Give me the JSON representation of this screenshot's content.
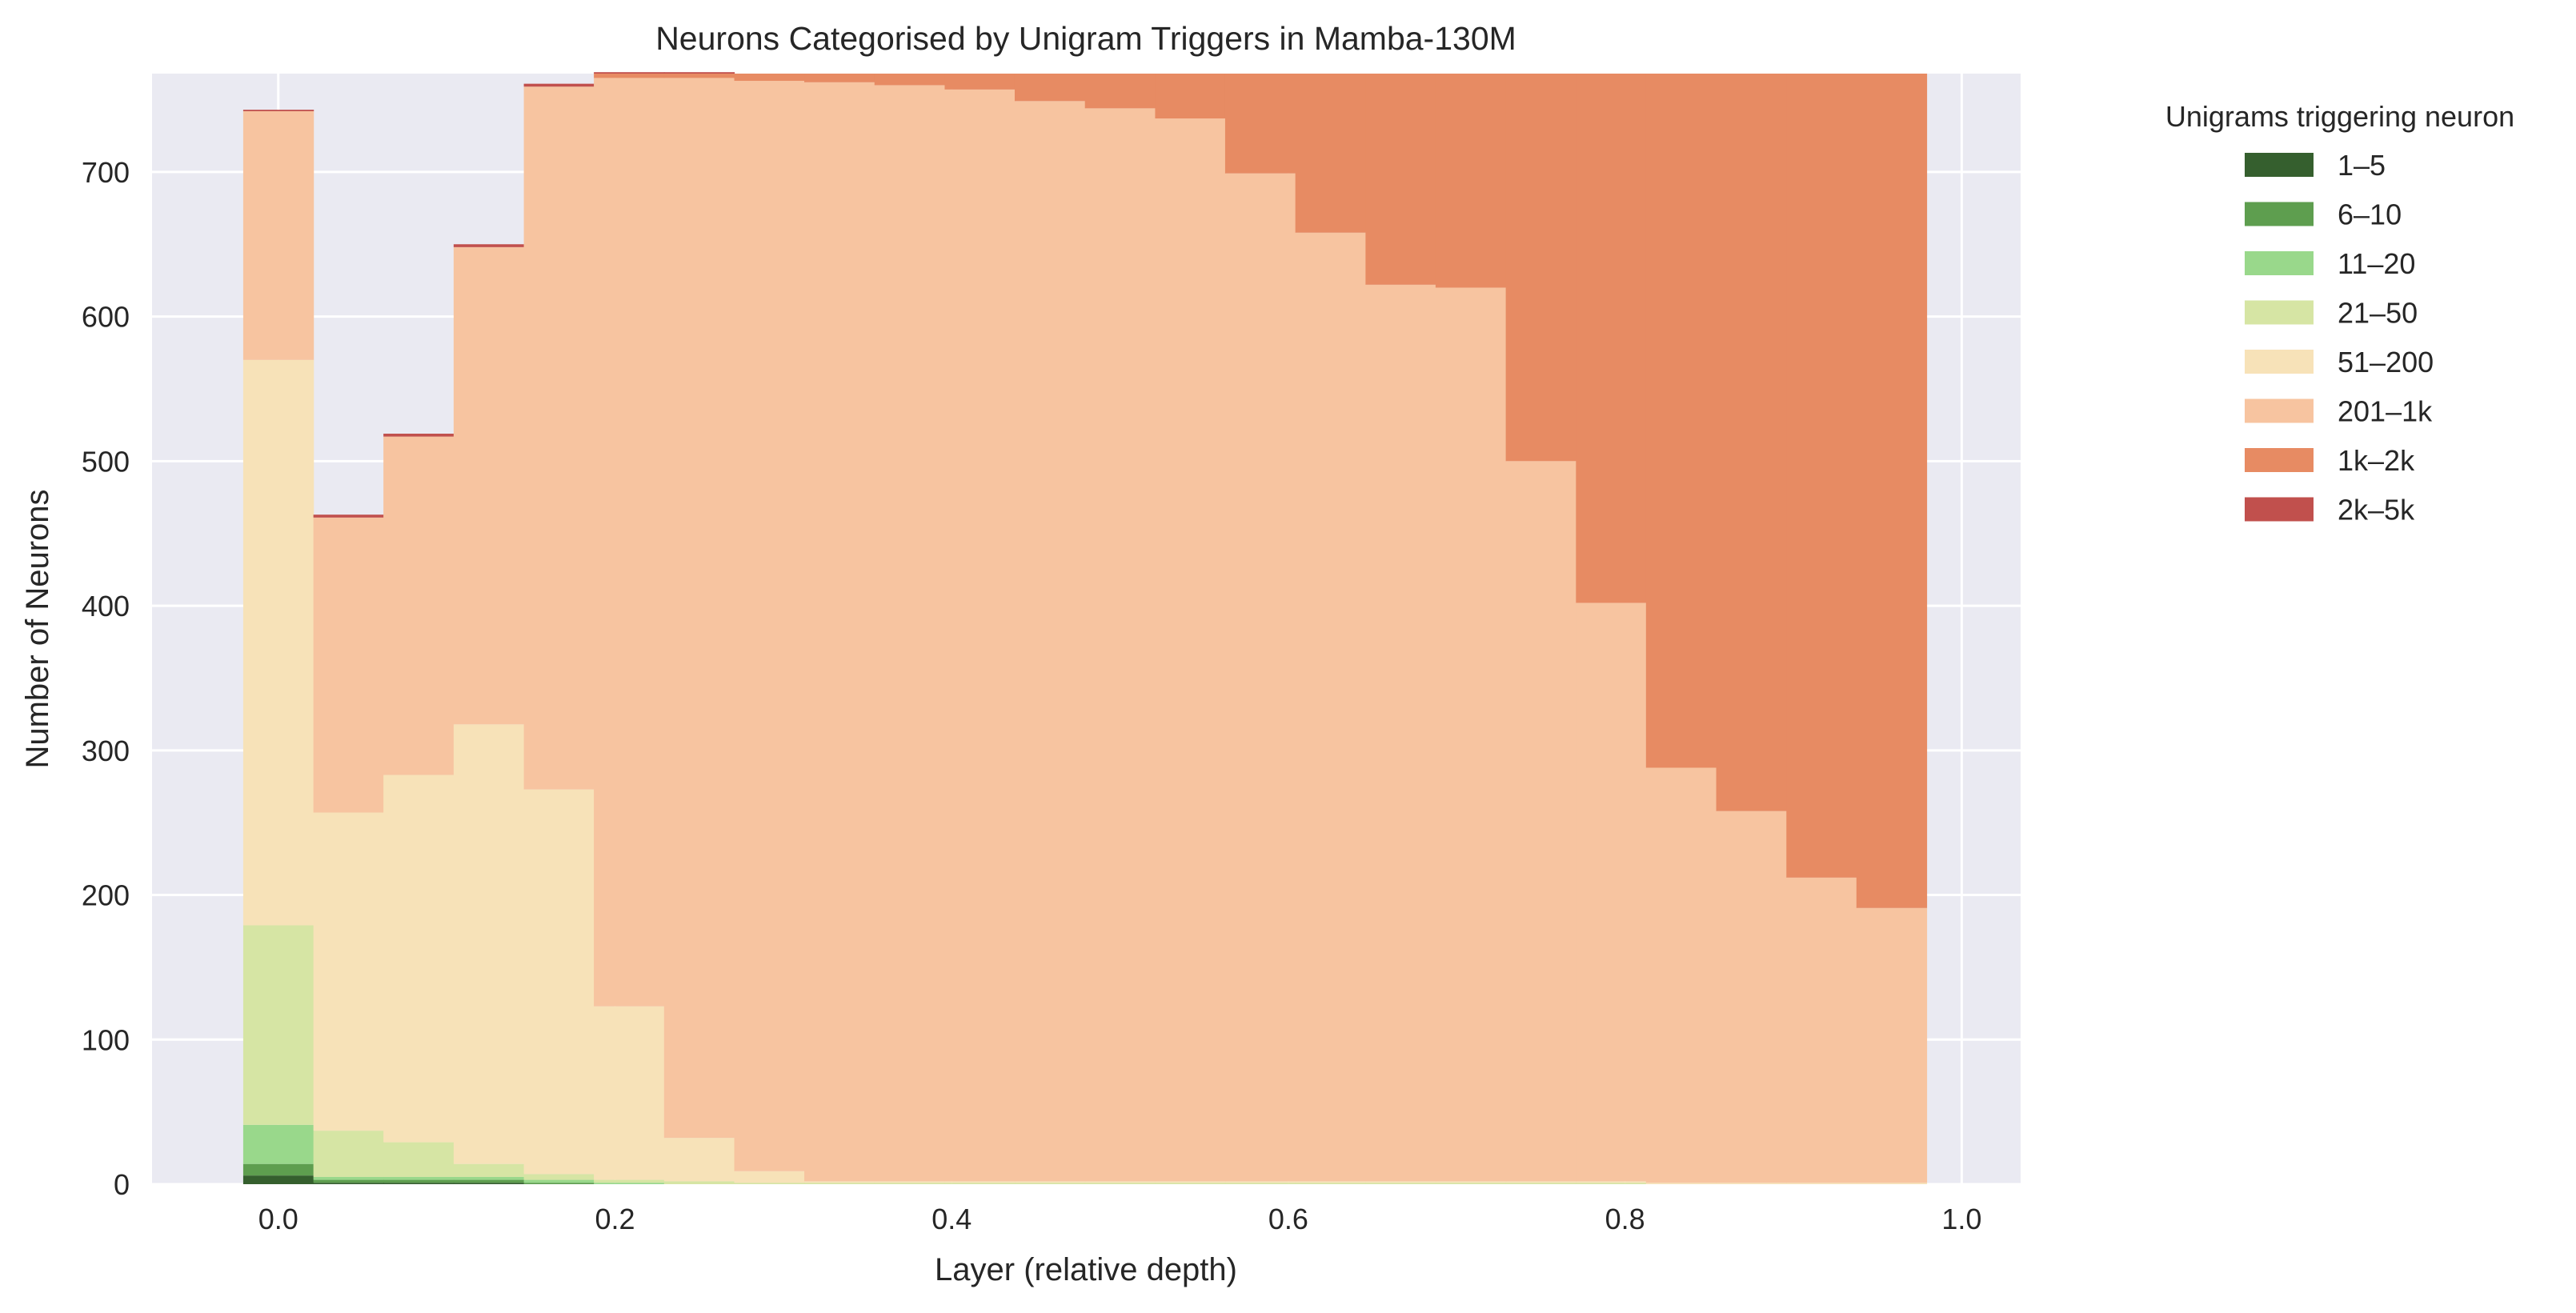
{
  "chart_data": {
    "type": "area",
    "title": "Neurons Categorised by Unigram Triggers in Mamba-130M",
    "xlabel": "Layer (relative depth)",
    "ylabel": "Number of Neurons",
    "xlim": [
      -0.075,
      1.035
    ],
    "ylim": [
      0,
      768
    ],
    "xticks": [
      "0.0",
      "0.2",
      "0.4",
      "0.6",
      "0.8",
      "1.0"
    ],
    "xtick_values": [
      0.0,
      0.2,
      0.4,
      0.6,
      0.8,
      1.0
    ],
    "yticks": [
      "0",
      "100",
      "200",
      "300",
      "400",
      "500",
      "600",
      "700"
    ],
    "ytick_values": [
      0,
      100,
      200,
      300,
      400,
      500,
      600,
      700
    ],
    "grid": true,
    "legend_title": "Unigrams triggering neuron",
    "legend_position": "outside right",
    "x": [
      0.0,
      0.0417,
      0.0833,
      0.125,
      0.1667,
      0.2083,
      0.25,
      0.2917,
      0.3333,
      0.375,
      0.4167,
      0.4583,
      0.5,
      0.5417,
      0.5833,
      0.625,
      0.6667,
      0.7083,
      0.75,
      0.7917,
      0.8333,
      0.875,
      0.9167,
      0.9583
    ],
    "series": [
      {
        "name": "1–5",
        "color": "#355f2e",
        "values": [
          6,
          1,
          1,
          1,
          0,
          0,
          0,
          0,
          0,
          0,
          0,
          0,
          0,
          0,
          0,
          0,
          0,
          0,
          0,
          0,
          0,
          0,
          0,
          0
        ]
      },
      {
        "name": "6–10",
        "color": "#5e9e4f",
        "values": [
          8,
          2,
          2,
          2,
          1,
          0,
          0,
          0,
          0,
          0,
          0,
          0,
          0,
          0,
          0,
          0,
          0,
          0,
          0,
          0,
          0,
          0,
          0,
          0
        ]
      },
      {
        "name": "11–20",
        "color": "#99d88b",
        "values": [
          27,
          2,
          2,
          2,
          2,
          1,
          0,
          0,
          0,
          0,
          0,
          0,
          0,
          0,
          0,
          0,
          0,
          0,
          0,
          0,
          0,
          0,
          0,
          0
        ]
      },
      {
        "name": "21–50",
        "color": "#d6e5a4",
        "values": [
          138,
          32,
          24,
          9,
          4,
          2,
          2,
          1,
          1,
          1,
          1,
          1,
          1,
          1,
          1,
          1,
          1,
          1,
          1,
          1,
          0,
          0,
          0,
          0
        ]
      },
      {
        "name": "51–200",
        "color": "#f7e2b8",
        "values": [
          391,
          220,
          254,
          304,
          266,
          120,
          30,
          8,
          1,
          1,
          1,
          1,
          1,
          1,
          1,
          1,
          1,
          1,
          1,
          1,
          1,
          1,
          1,
          1
        ]
      },
      {
        "name": "201–1k",
        "color": "#f7c4a0",
        "values": [
          172,
          204,
          234,
          330,
          486,
          642,
          733,
          754,
          760,
          758,
          755,
          747,
          742,
          735,
          697,
          656,
          620,
          618,
          498,
          400,
          287,
          257,
          211,
          190
        ]
      },
      {
        "name": "1k–2k",
        "color": "#e78b63",
        "values": [
          0,
          0,
          0,
          0,
          0,
          3,
          3,
          5,
          6,
          8,
          11,
          19,
          24,
          31,
          69,
          110,
          146,
          148,
          268,
          366,
          480,
          510,
          556,
          577
        ]
      },
      {
        "name": "2k–5k",
        "color": "#c1504d",
        "values": [
          1,
          2,
          2,
          2,
          2,
          1,
          1,
          0,
          0,
          0,
          0,
          0,
          0,
          0,
          0,
          0,
          0,
          0,
          0,
          0,
          0,
          0,
          0,
          0
        ]
      }
    ]
  }
}
